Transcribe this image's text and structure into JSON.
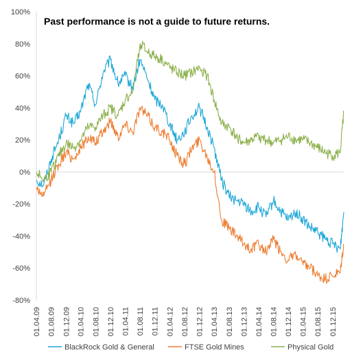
{
  "chart_data": {
    "type": "line",
    "title": "",
    "annotation": "Past performance is not a guide to future returns.",
    "xlabel": "",
    "ylabel": "",
    "ylim": [
      -80,
      100
    ],
    "y_ticks": [
      "100%",
      "80%",
      "60%",
      "40%",
      "20%",
      "0%",
      "-20%",
      "-40%",
      "-60%",
      "-80%"
    ],
    "x_ticks": [
      "01.04.09",
      "01.08.09",
      "01.12.09",
      "01.04.10",
      "01.08.10",
      "01.12.10",
      "01.04.11",
      "01.08.11",
      "01.12.11",
      "01.04.12",
      "01.08.12",
      "01.12.12",
      "01.04.13",
      "01.08.13",
      "01.12.13",
      "01.04.14",
      "01.08.14",
      "01.12.14",
      "01.04.15",
      "01.08.15",
      "01.12.15"
    ],
    "x": [
      "01.04.09",
      "01.06.09",
      "01.08.09",
      "01.10.09",
      "01.12.09",
      "01.02.10",
      "01.04.10",
      "01.06.10",
      "01.08.10",
      "01.10.10",
      "01.12.10",
      "01.02.11",
      "01.04.11",
      "01.06.11",
      "01.08.11",
      "01.10.11",
      "01.12.11",
      "01.02.12",
      "01.04.12",
      "01.06.12",
      "01.08.12",
      "01.10.12",
      "01.12.12",
      "01.02.13",
      "01.04.13",
      "01.06.13",
      "01.08.13",
      "01.10.13",
      "01.12.13",
      "01.02.14",
      "01.04.14",
      "01.06.14",
      "01.08.14",
      "01.10.14",
      "01.12.14",
      "01.02.15",
      "01.04.15",
      "01.06.15",
      "01.08.15",
      "01.10.15",
      "01.12.15",
      "01.02.16",
      "01.03.16"
    ],
    "grid": false,
    "legend_position": "bottom",
    "series": [
      {
        "name": "BlackRock Gold & General",
        "color": "#1ca6d6",
        "values": [
          -5,
          -8,
          8,
          20,
          35,
          30,
          38,
          55,
          42,
          62,
          70,
          55,
          60,
          52,
          70,
          58,
          45,
          42,
          30,
          20,
          25,
          35,
          40,
          28,
          15,
          -5,
          -15,
          -18,
          -20,
          -25,
          -22,
          -28,
          -18,
          -25,
          -30,
          -25,
          -30,
          -35,
          -38,
          -42,
          -45,
          -48,
          -25
        ]
      },
      {
        "name": "FTSE Gold Mines",
        "color": "#ed7d31",
        "values": [
          -10,
          -15,
          -5,
          5,
          12,
          8,
          15,
          22,
          18,
          25,
          32,
          22,
          30,
          25,
          40,
          35,
          28,
          25,
          20,
          10,
          5,
          15,
          20,
          10,
          0,
          -30,
          -35,
          -40,
          -45,
          -48,
          -45,
          -50,
          -42,
          -50,
          -55,
          -52,
          -58,
          -60,
          -65,
          -67,
          -65,
          -63,
          -45
        ]
      },
      {
        "name": "Physical Gold",
        "color": "#8cb04b",
        "values": [
          0,
          -5,
          0,
          10,
          18,
          15,
          20,
          28,
          28,
          35,
          40,
          35,
          45,
          50,
          80,
          75,
          72,
          70,
          65,
          62,
          60,
          62,
          65,
          60,
          45,
          30,
          28,
          22,
          18,
          20,
          22,
          20,
          18,
          20,
          22,
          20,
          20,
          18,
          15,
          12,
          10,
          12,
          38
        ]
      }
    ]
  }
}
